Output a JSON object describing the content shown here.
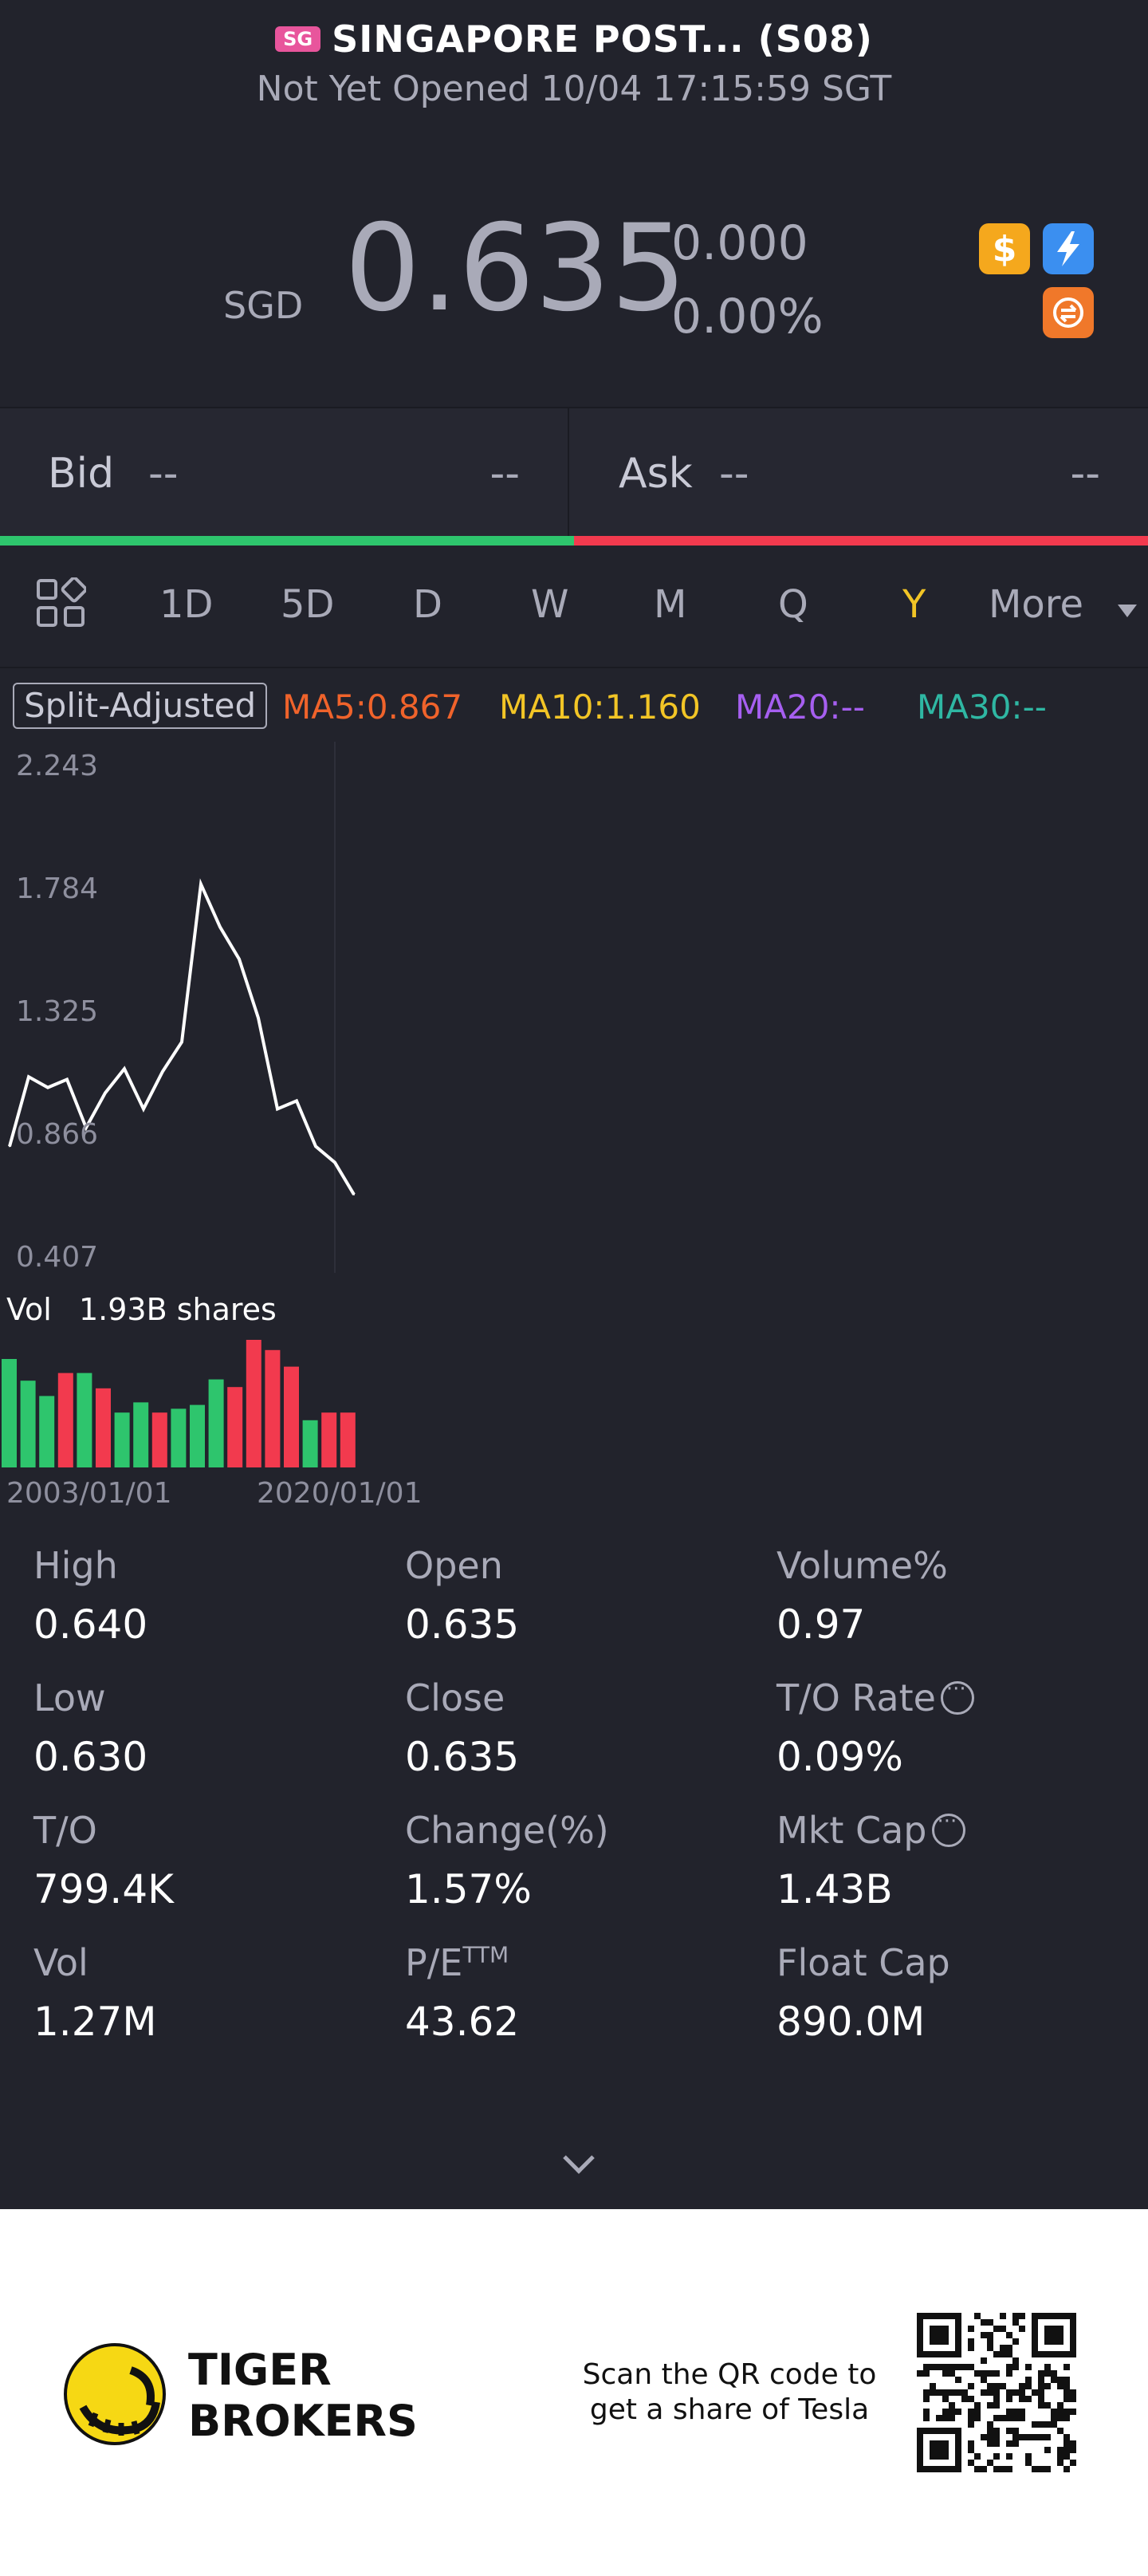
{
  "header": {
    "flag": "SG",
    "title": "SINGAPORE POST... (S08)",
    "subtitle": "Not Yet Opened 10/04 17:15:59 SGT",
    "currency": "SGD",
    "price": "0.635",
    "change_value": "0.000",
    "change_percent": "0.00%",
    "badges": [
      "dollar-icon",
      "bolt-icon",
      "swap-icon"
    ]
  },
  "bid_ask": {
    "bid_label": "Bid",
    "bid_value": "--",
    "bid_size": "--",
    "ask_label": "Ask",
    "ask_value": "--",
    "ask_size": "--"
  },
  "tabs": [
    {
      "label": "1D"
    },
    {
      "label": "5D"
    },
    {
      "label": "D"
    },
    {
      "label": "W"
    },
    {
      "label": "M"
    },
    {
      "label": "Q"
    },
    {
      "label": "Y",
      "active": true
    },
    {
      "label": "More"
    }
  ],
  "ma_row": {
    "split_label": "Split-Adjusted",
    "ma5": "MA5:0.867",
    "ma10": "MA10:1.160",
    "ma20": "MA20:--",
    "ma30": "MA30:--",
    "colors": {
      "ma5": "#f0632b",
      "ma10": "#f2c526",
      "ma20": "#a65ff0",
      "ma30": "#2fb7a3"
    }
  },
  "chart_data": {
    "type": "line",
    "x": [
      "2003",
      "2004",
      "2005",
      "2006",
      "2007",
      "2008",
      "2009",
      "2010",
      "2011",
      "2012",
      "2013",
      "2014",
      "2015",
      "2016",
      "2017",
      "2018",
      "2019",
      "2020",
      "2021"
    ],
    "series": [
      {
        "values": [
          0.82,
          1.08,
          1.04,
          1.07,
          0.89,
          1.02,
          1.11,
          0.96,
          1.1,
          1.21,
          1.8,
          1.64,
          1.52,
          1.3,
          0.96,
          0.99,
          0.82,
          0.76,
          0.64
        ]
      }
    ],
    "yticks": [
      "2.243",
      "1.784",
      "1.325",
      "0.866",
      "0.407"
    ],
    "ylim": [
      0.407,
      2.243
    ],
    "volume": {
      "label": "Vol",
      "value": "1.93B shares",
      "bars": [
        {
          "v": 0.85,
          "c": "up"
        },
        {
          "v": 0.68,
          "c": "up"
        },
        {
          "v": 0.56,
          "c": "up"
        },
        {
          "v": 0.74,
          "c": "down"
        },
        {
          "v": 0.74,
          "c": "up"
        },
        {
          "v": 0.62,
          "c": "down"
        },
        {
          "v": 0.43,
          "c": "up"
        },
        {
          "v": 0.51,
          "c": "up"
        },
        {
          "v": 0.43,
          "c": "down"
        },
        {
          "v": 0.46,
          "c": "up"
        },
        {
          "v": 0.49,
          "c": "up"
        },
        {
          "v": 0.69,
          "c": "up"
        },
        {
          "v": 0.63,
          "c": "down"
        },
        {
          "v": 1.0,
          "c": "down"
        },
        {
          "v": 0.92,
          "c": "down"
        },
        {
          "v": 0.79,
          "c": "down"
        },
        {
          "v": 0.37,
          "c": "up"
        },
        {
          "v": 0.43,
          "c": "down"
        },
        {
          "v": 0.43,
          "c": "down"
        }
      ]
    },
    "x_labels": [
      "2003/01/01",
      "2020/01/01"
    ],
    "colors": {
      "line": "#ffffff",
      "up": "#2ec56d",
      "down": "#f23a4e"
    }
  },
  "stats": [
    {
      "label": "High",
      "value": "0.640"
    },
    {
      "label": "Open",
      "value": "0.635"
    },
    {
      "label": "Volume%",
      "value": "0.97"
    },
    {
      "label": "Low",
      "value": "0.630"
    },
    {
      "label": "Close",
      "value": "0.635"
    },
    {
      "label": "T/O Rate",
      "value": "0.09%",
      "info": true
    },
    {
      "label": "T/O",
      "value": "799.4K"
    },
    {
      "label": "Change(%)",
      "value": "1.57%"
    },
    {
      "label": "Mkt Cap",
      "value": "1.43B",
      "info": true
    },
    {
      "label": "Vol",
      "value": "1.27M"
    },
    {
      "label": "P/E",
      "label_sup": "TTM",
      "value": "43.62"
    },
    {
      "label": "Float Cap",
      "value": "890.0M"
    }
  ],
  "footer": {
    "brand_line1": "TIGER",
    "brand_line2": "BROKERS",
    "scan_line1": "Scan the QR code to",
    "scan_line2": "get a share of Tesla"
  }
}
